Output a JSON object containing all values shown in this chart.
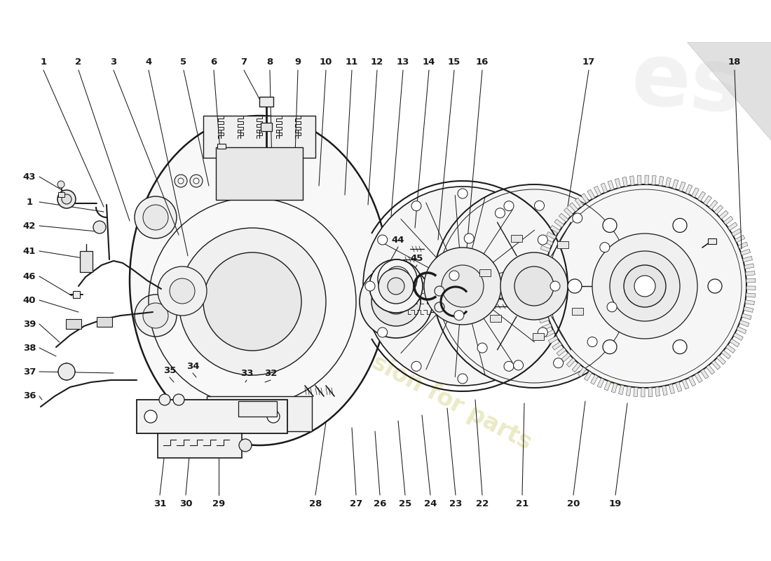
{
  "background_color": "#ffffff",
  "line_color": "#1a1a1a",
  "text_color": "#1a1a1a",
  "label_fontsize": 9.5,
  "watermark_color1": "#d4d460",
  "watermark_color2": "#cccc88",
  "top_labels": [
    [
      "1",
      62
    ],
    [
      "2",
      115
    ],
    [
      "3",
      165
    ],
    [
      "4",
      215
    ],
    [
      "5",
      267
    ],
    [
      "6",
      308
    ],
    [
      "7",
      352
    ],
    [
      "8",
      388
    ],
    [
      "9",
      428
    ],
    [
      "10",
      468
    ],
    [
      "11",
      506
    ],
    [
      "12",
      542
    ],
    [
      "13",
      578
    ],
    [
      "14",
      615
    ],
    [
      "15",
      652
    ],
    [
      "16",
      690
    ],
    [
      "17",
      842
    ],
    [
      "18",
      1050
    ]
  ],
  "left_labels": [
    [
      "43",
      250
    ],
    [
      "1",
      285
    ],
    [
      "42",
      318
    ],
    [
      "41",
      355
    ],
    [
      "46",
      392
    ],
    [
      "40",
      425
    ],
    [
      "39",
      462
    ],
    [
      "38",
      495
    ],
    [
      "37",
      530
    ],
    [
      "36",
      567
    ]
  ],
  "bottom_labels": [
    [
      "31",
      232
    ],
    [
      "30",
      268
    ],
    [
      "29",
      315
    ],
    [
      "28",
      452
    ],
    [
      "27",
      510
    ],
    [
      "26",
      543
    ],
    [
      "25",
      578
    ],
    [
      "24",
      614
    ],
    [
      "23",
      650
    ],
    [
      "22",
      690
    ],
    [
      "21",
      748
    ],
    [
      "20",
      820
    ],
    [
      "19",
      880
    ]
  ],
  "mid_labels": [
    [
      "35",
      248,
      530
    ],
    [
      "34",
      278,
      525
    ],
    [
      "33",
      350,
      535
    ],
    [
      "32",
      385,
      535
    ],
    [
      "44",
      570,
      340
    ],
    [
      "45",
      595,
      368
    ]
  ]
}
